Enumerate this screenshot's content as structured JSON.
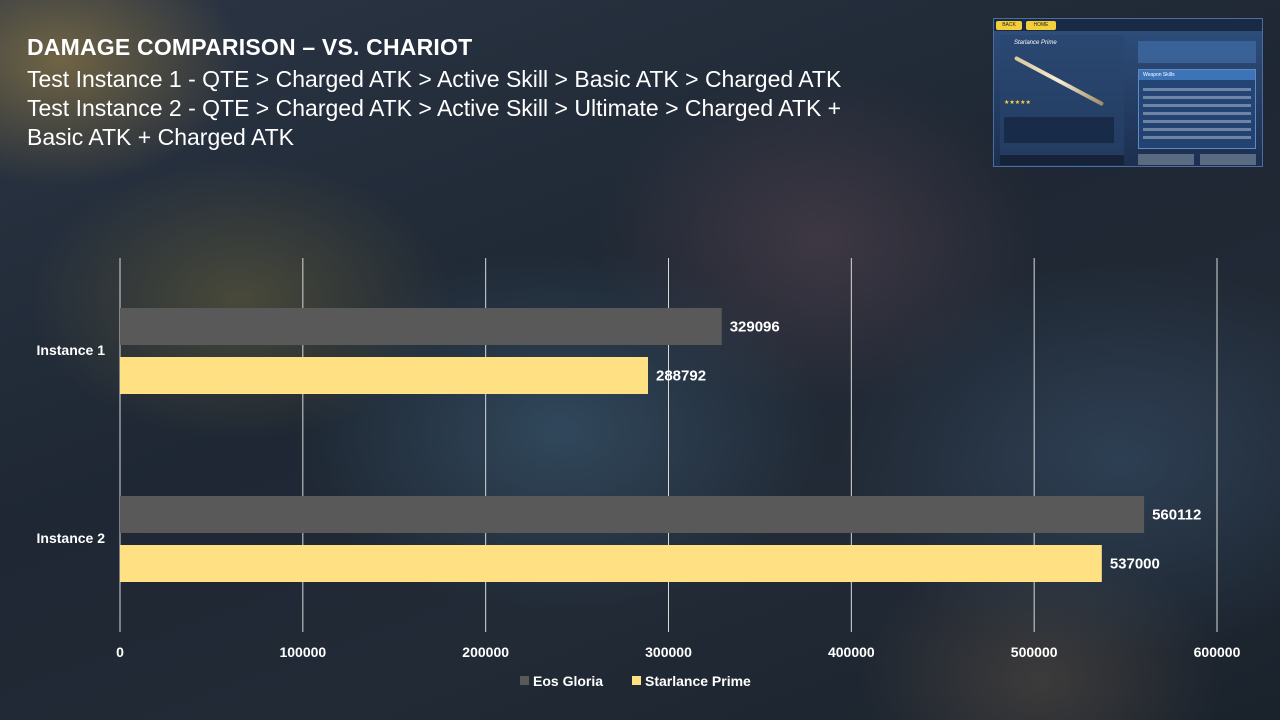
{
  "header": {
    "title": "DAMAGE COMPARISON – VS. CHARIOT",
    "subtitle_lines": [
      "Test Instance 1 - QTE > Charged ATK > Active Skill  > Basic ATK > Charged ATK",
      "Test Instance 2 - QTE > Charged ATK > Active Skill  > Ultimate > Charged ATK +",
      "Basic ATK + Charged ATK"
    ]
  },
  "thumbnail": {
    "back_label": "BACK",
    "home_label": "HOME",
    "weapon_name": "Starlance Prime",
    "panel_title": "Weapon Skills"
  },
  "colors": {
    "eos_gloria": "#595959",
    "starlance_prime": "#ffe083",
    "gridline": "#d9d9d9"
  },
  "chart_data": {
    "type": "bar",
    "orientation": "horizontal",
    "categories": [
      "Instance 1",
      "Instance 2"
    ],
    "series": [
      {
        "name": "Eos Gloria",
        "values": [
          329096,
          560112
        ]
      },
      {
        "name": "Starlance Prime",
        "values": [
          288792,
          537000
        ]
      }
    ],
    "xlim": [
      0,
      600000
    ],
    "xticks": [
      0,
      100000,
      200000,
      300000,
      400000,
      500000,
      600000
    ],
    "tick_labels": [
      "0",
      "100000",
      "200000",
      "300000",
      "400000",
      "500000",
      "600000"
    ],
    "data_labels": [
      [
        "329096",
        "560112"
      ],
      [
        "288792",
        "537000"
      ]
    ],
    "grid": true,
    "legend_position": "bottom"
  }
}
